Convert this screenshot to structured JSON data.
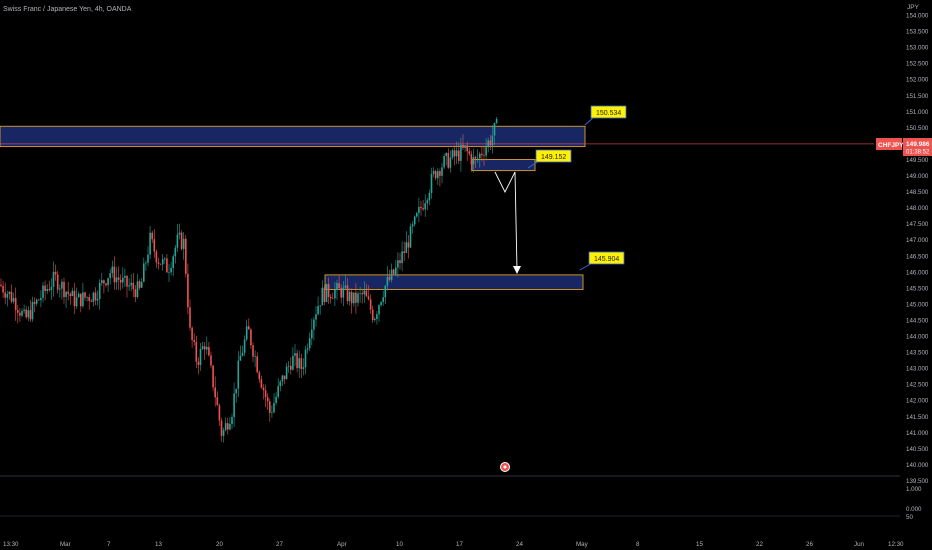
{
  "title": "Swiss Franc / Japanese Yen, 4h, OANDA",
  "currency": "JPY",
  "symbol": "CHFJPY",
  "last_price": "149.986",
  "countdown": "01:38:52",
  "colors": {
    "background": "#000000",
    "up": "#26a69a",
    "down": "#ef5350",
    "zone_fill": "#1a2a6c",
    "zone_border": "#e0a020",
    "label_bg": "#fff200",
    "price_line": "#ef5350"
  },
  "annotations": {
    "upper_zone_label": "150.534",
    "mid_zone_label": "149.152",
    "lower_zone_label": "145.904"
  },
  "chart_data": {
    "type": "candlestick",
    "title": "Swiss Franc / Japanese Yen, 4h, OANDA",
    "ylabel": "JPY",
    "ylim": [
      139.5,
      154.0
    ],
    "y_ticks": [
      "154.000",
      "153.500",
      "153.000",
      "152.500",
      "152.000",
      "151.500",
      "151.000",
      "150.500",
      "150.000",
      "149.500",
      "149.000",
      "148.500",
      "148.000",
      "147.500",
      "147.000",
      "146.500",
      "146.000",
      "145.500",
      "145.000",
      "144.500",
      "144.000",
      "143.500",
      "143.000",
      "142.500",
      "142.000",
      "141.500",
      "141.000",
      "140.500",
      "140.000",
      "139.500"
    ],
    "x_ticks": [
      "13:30",
      "Mar",
      "7",
      "13",
      "20",
      "27",
      "Apr",
      "10",
      "17",
      "24",
      "May",
      "8",
      "15",
      "22",
      "26",
      "Jun",
      "12:30"
    ],
    "zones": [
      {
        "label": "150.534",
        "top": 150.534,
        "bottom": 149.9
      },
      {
        "label": "149.152",
        "top": 149.5,
        "bottom": 149.152
      },
      {
        "label": "145.904",
        "top": 145.904,
        "bottom": 145.45
      }
    ],
    "price_waypoints": [
      [
        0,
        145.6
      ],
      [
        15,
        145.1
      ],
      [
        25,
        144.5
      ],
      [
        40,
        145.2
      ],
      [
        55,
        145.8
      ],
      [
        75,
        145.1
      ],
      [
        95,
        145.3
      ],
      [
        110,
        146.0
      ],
      [
        125,
        145.6
      ],
      [
        140,
        145.4
      ],
      [
        150,
        147.0
      ],
      [
        158,
        146.4
      ],
      [
        168,
        146.1
      ],
      [
        178,
        147.0
      ],
      [
        184,
        146.9
      ],
      [
        190,
        144.1
      ],
      [
        197,
        143.2
      ],
      [
        205,
        143.8
      ],
      [
        214,
        142.4
      ],
      [
        222,
        140.9
      ],
      [
        232,
        141.7
      ],
      [
        240,
        143.3
      ],
      [
        248,
        144.2
      ],
      [
        258,
        143.0
      ],
      [
        270,
        141.6
      ],
      [
        282,
        142.6
      ],
      [
        292,
        143.3
      ],
      [
        302,
        143.0
      ],
      [
        312,
        144.5
      ],
      [
        322,
        145.3
      ],
      [
        332,
        145.4
      ],
      [
        342,
        145.4
      ],
      [
        354,
        145.1
      ],
      [
        364,
        145.3
      ],
      [
        374,
        144.6
      ],
      [
        384,
        145.5
      ],
      [
        395,
        146.0
      ],
      [
        405,
        146.7
      ],
      [
        416,
        147.6
      ],
      [
        426,
        148.4
      ],
      [
        435,
        149.1
      ],
      [
        444,
        149.4
      ],
      [
        455,
        149.6
      ],
      [
        465,
        149.8
      ],
      [
        475,
        149.4
      ],
      [
        483,
        149.8
      ],
      [
        490,
        150.1
      ],
      [
        496,
        150.5
      ]
    ],
    "oscillator": {
      "ticks": [
        "1.000",
        "0.000"
      ],
      "value": 50
    }
  }
}
